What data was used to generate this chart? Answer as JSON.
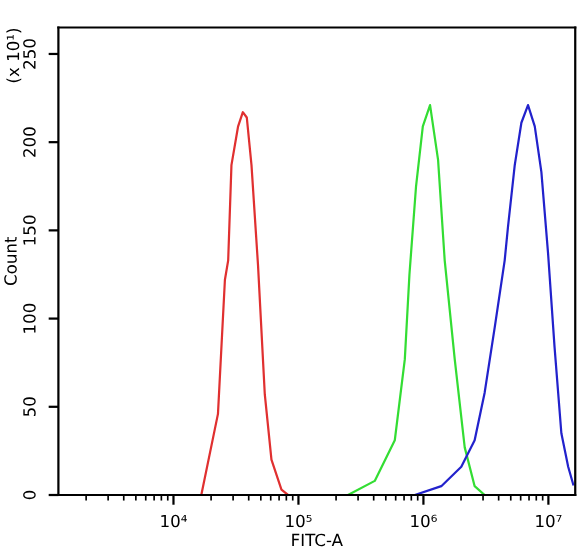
{
  "chart_data": {
    "type": "line",
    "xlabel": "FITC-A",
    "ylabel": "Count",
    "annotations": [
      "(x 10¹)"
    ],
    "log": "x",
    "grid": false,
    "marker": "none",
    "line_style": "solid",
    "xlim": [
      1200,
      16400000
    ],
    "ylim": [
      0,
      265
    ],
    "xticks": [
      {
        "value": 10000,
        "label": "10⁴"
      },
      {
        "value": 100000,
        "label": "10⁵"
      },
      {
        "value": 1000000,
        "label": "10⁶"
      },
      {
        "value": 10000000,
        "label": "10⁷"
      }
    ],
    "yticks": [
      0,
      50,
      100,
      150,
      200,
      250
    ],
    "series": [
      {
        "color": "#e03030",
        "x": [
          16700,
          22700,
          25800,
          27400,
          29100,
          32900,
          35900,
          38600,
          42100,
          47500,
          53800,
          60800,
          73100,
          82600
        ],
        "values": [
          0,
          46,
          122,
          133,
          187,
          209,
          217,
          214,
          187,
          130,
          57,
          20,
          3,
          0
        ]
      },
      {
        "color": "#33dd33",
        "x": [
          249000,
          408000,
          590000,
          710000,
          773000,
          873000,
          989000,
          1130000,
          1310000,
          1480000,
          1780000,
          2140000,
          2570000,
          3090000
        ],
        "values": [
          0,
          8,
          31,
          77,
          125,
          175,
          209,
          221,
          190,
          133,
          77,
          27,
          5,
          0
        ]
      },
      {
        "color": "#2222cc",
        "x": [
          853000,
          1390000,
          2010000,
          2570000,
          3090000,
          3720000,
          4470000,
          4750000,
          5380000,
          6080000,
          6870000,
          7780000,
          8790000,
          9940000,
          11200000,
          12700000,
          14400000,
          15800000
        ],
        "values": [
          0,
          5,
          16,
          31,
          58,
          95,
          133,
          152,
          187,
          211,
          221,
          209,
          183,
          137,
          84,
          35,
          16,
          6
        ]
      }
    ]
  }
}
